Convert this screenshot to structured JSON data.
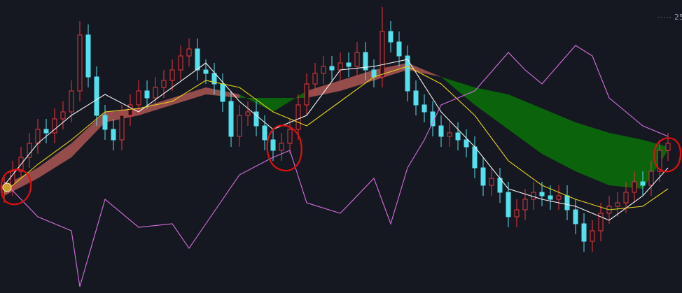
{
  "chart_data": {
    "type": "candlestick",
    "ylim": [
      17.12,
      25.5
    ],
    "yticks": [
      25
    ],
    "up_color": "#e8343c",
    "down_color": "#54e1ee",
    "open": [
      20.0,
      20.2,
      20.6,
      21.0,
      21.4,
      21.8,
      21.7,
      22.1,
      22.3,
      22.9,
      24.5,
      23.3,
      22.2,
      21.8,
      21.5,
      22.2,
      22.5,
      22.9,
      22.7,
      23.0,
      23.2,
      23.5,
      23.9,
      24.1,
      23.5,
      23.4,
      23.1,
      22.6,
      21.6,
      22.2,
      22.3,
      21.9,
      21.5,
      21.2,
      21.4,
      21.8,
      22.5,
      23.1,
      23.4,
      23.6,
      23.5,
      23.7,
      23.6,
      24.0,
      23.5,
      23.3,
      24.6,
      24.3,
      23.9,
      22.9,
      22.5,
      22.3,
      21.9,
      21.6,
      21.7,
      21.5,
      21.3,
      20.7,
      20.2,
      20.4,
      20.0,
      19.3,
      19.5,
      19.8,
      20.0,
      19.9,
      19.8,
      19.9,
      19.5,
      19.1,
      18.6,
      18.9,
      19.4,
      19.6,
      19.7,
      20.0,
      20.3,
      20.2,
      20.6,
      21.2
    ],
    "high": [
      20.5,
      20.9,
      21.3,
      21.7,
      22.1,
      22.1,
      22.4,
      22.6,
      23.2,
      24.9,
      24.8,
      23.6,
      22.5,
      22.1,
      22.5,
      22.8,
      23.2,
      23.2,
      23.3,
      23.5,
      23.8,
      24.2,
      24.4,
      24.4,
      23.8,
      23.7,
      23.4,
      22.9,
      22.5,
      22.6,
      22.6,
      22.2,
      21.8,
      21.7,
      22.1,
      22.8,
      23.4,
      23.7,
      23.9,
      23.9,
      24.0,
      24.0,
      24.3,
      24.3,
      23.8,
      25.3,
      24.9,
      24.6,
      24.2,
      23.2,
      22.8,
      22.6,
      22.2,
      22.0,
      22.0,
      21.8,
      21.6,
      21.0,
      20.7,
      20.7,
      20.3,
      19.8,
      20.1,
      20.3,
      20.3,
      20.2,
      20.2,
      20.2,
      19.8,
      19.4,
      19.2,
      19.7,
      19.9,
      20.0,
      20.3,
      20.6,
      20.6,
      20.9,
      21.5,
      21.7
    ],
    "low": [
      19.7,
      19.9,
      20.3,
      20.7,
      21.1,
      21.4,
      21.4,
      21.8,
      22.0,
      22.6,
      23.0,
      21.9,
      21.5,
      21.2,
      21.2,
      21.9,
      22.2,
      22.4,
      22.4,
      22.7,
      22.9,
      23.2,
      23.6,
      23.2,
      23.1,
      22.8,
      22.3,
      21.3,
      21.3,
      21.9,
      21.6,
      21.2,
      20.9,
      20.9,
      21.1,
      21.5,
      22.2,
      22.8,
      23.1,
      23.2,
      23.2,
      23.3,
      23.3,
      23.2,
      23.0,
      23.0,
      24.0,
      23.6,
      22.6,
      22.2,
      22.0,
      21.6,
      21.3,
      21.3,
      21.2,
      21.0,
      20.4,
      19.9,
      19.9,
      19.7,
      19.0,
      19.0,
      19.2,
      19.5,
      19.6,
      19.5,
      19.5,
      19.2,
      18.8,
      18.3,
      18.3,
      18.6,
      19.1,
      19.3,
      19.4,
      19.7,
      19.9,
      19.9,
      20.3,
      20.9
    ],
    "close": [
      20.2,
      20.6,
      21.0,
      21.4,
      21.8,
      21.7,
      22.1,
      22.3,
      22.9,
      24.5,
      23.3,
      22.2,
      21.8,
      21.5,
      22.2,
      22.5,
      22.9,
      22.7,
      23.0,
      23.2,
      23.5,
      23.9,
      24.1,
      23.5,
      23.4,
      23.1,
      22.6,
      21.6,
      22.2,
      22.3,
      21.9,
      21.5,
      21.2,
      21.4,
      21.8,
      22.5,
      23.1,
      23.4,
      23.6,
      23.5,
      23.7,
      23.6,
      24.0,
      23.5,
      23.3,
      24.6,
      24.3,
      23.9,
      22.9,
      22.5,
      22.3,
      21.9,
      21.6,
      21.7,
      21.5,
      21.3,
      20.7,
      20.2,
      20.4,
      20.0,
      19.3,
      19.5,
      19.8,
      20.0,
      19.9,
      19.8,
      19.9,
      19.5,
      19.1,
      18.6,
      18.9,
      19.4,
      19.6,
      19.7,
      20.0,
      20.3,
      20.2,
      20.6,
      21.2,
      21.4
    ],
    "cloud": {
      "x": [
        0,
        4,
        8,
        12,
        16,
        20,
        24,
        28,
        32,
        36,
        40,
        44,
        48,
        52,
        56,
        60,
        64,
        68,
        72,
        76,
        79
      ],
      "a": [
        20.2,
        20.7,
        21.4,
        22.3,
        22.4,
        22.7,
        23.0,
        22.8,
        22.3,
        22.9,
        23.2,
        23.5,
        23.7,
        23.3,
        22.5,
        21.8,
        21.1,
        20.6,
        20.2,
        20.1,
        21.2
      ],
      "b": [
        19.9,
        20.4,
        21.0,
        22.0,
        22.2,
        22.5,
        22.8,
        22.7,
        22.7,
        22.7,
        22.9,
        23.2,
        23.5,
        23.3,
        23.0,
        22.8,
        22.4,
        22.0,
        21.7,
        21.5,
        21.3
      ],
      "a_above_color": "#a0524e",
      "b_above_color": "#0b6b0b"
    },
    "lines": [
      {
        "color": "#f4f4f4",
        "x": [
          0,
          4,
          8,
          12,
          16,
          20,
          24,
          28,
          32,
          36,
          40,
          44,
          48,
          52,
          56,
          60,
          64,
          68,
          72,
          76,
          79
        ],
        "values": [
          20.2,
          21.4,
          22.2,
          22.8,
          22.3,
          23.0,
          23.7,
          22.6,
          21.8,
          22.2,
          23.5,
          23.6,
          23.8,
          22.3,
          21.3,
          20.1,
          19.8,
          19.6,
          19.2,
          19.9,
          20.7
        ]
      },
      {
        "color": "#e6d21e",
        "x": [
          0,
          4,
          8,
          12,
          16,
          20,
          24,
          28,
          32,
          36,
          40,
          44,
          48,
          52,
          56,
          60,
          64,
          68,
          72,
          76,
          79
        ],
        "values": [
          20.0,
          20.8,
          21.5,
          22.3,
          22.4,
          22.6,
          23.2,
          23.0,
          22.3,
          21.9,
          22.6,
          23.3,
          23.6,
          23.1,
          22.2,
          20.9,
          20.2,
          19.8,
          19.5,
          19.6,
          20.1
        ]
      },
      {
        "color": "#d56fe0",
        "x": [
          0,
          4,
          8,
          9,
          12,
          16,
          20,
          22,
          24,
          28,
          32,
          34,
          36,
          40,
          44,
          46,
          48,
          50,
          52,
          56,
          60,
          62,
          64,
          68,
          70,
          72,
          76,
          79
        ],
        "values": [
          20.3,
          19.3,
          18.9,
          17.3,
          19.8,
          19.0,
          19.1,
          18.4,
          19.1,
          20.5,
          21.0,
          21.2,
          19.7,
          19.4,
          20.4,
          19.1,
          20.7,
          21.5,
          22.5,
          22.9,
          24.0,
          23.5,
          23.1,
          24.2,
          23.9,
          22.7,
          21.9,
          21.6
        ]
      }
    ]
  }
}
